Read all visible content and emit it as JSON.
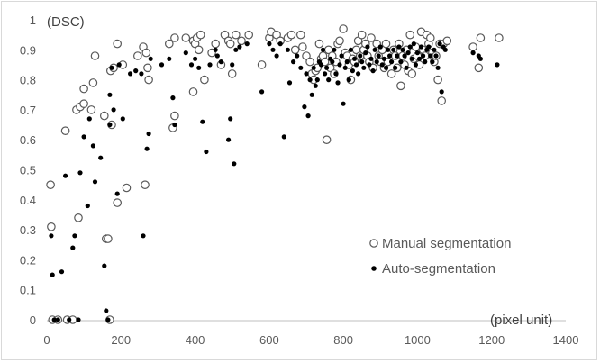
{
  "chart_data": {
    "type": "scatter",
    "ylabel": "(DSC)",
    "xlabel": "(pixel unit)",
    "xlim": [
      0,
      1400
    ],
    "ylim": [
      0,
      1
    ],
    "x_ticks": [
      "0",
      "200",
      "400",
      "600",
      "800",
      "1000",
      "1200",
      "1400"
    ],
    "y_ticks": [
      "0",
      "0.1",
      "0.2",
      "0.3",
      "0.4",
      "0.5",
      "0.6",
      "0.7",
      "0.8",
      "0.9",
      "1"
    ],
    "grid": false,
    "legend_position": "bottom-right",
    "series": [
      {
        "name": "Manual segmentation",
        "marker": "open-circle",
        "color": "#595959",
        "points": [
          [
            10,
            0.45
          ],
          [
            12,
            0.31
          ],
          [
            15,
            0
          ],
          [
            30,
            0
          ],
          [
            50,
            0.63
          ],
          [
            55,
            0
          ],
          [
            70,
            0
          ],
          [
            80,
            0.7
          ],
          [
            85,
            0.34
          ],
          [
            90,
            0.71
          ],
          [
            100,
            0.72
          ],
          [
            100,
            0.77
          ],
          [
            120,
            0.7
          ],
          [
            125,
            0.79
          ],
          [
            130,
            0.88
          ],
          [
            155,
            0.68
          ],
          [
            160,
            0.27
          ],
          [
            165,
            0.27
          ],
          [
            170,
            0
          ],
          [
            172,
            0.83
          ],
          [
            175,
            0.65
          ],
          [
            180,
            0.84
          ],
          [
            190,
            0.92
          ],
          [
            190,
            0.39
          ],
          [
            205,
            0.85
          ],
          [
            215,
            0.44
          ],
          [
            245,
            0.88
          ],
          [
            260,
            0.91
          ],
          [
            265,
            0.45
          ],
          [
            268,
            0.89
          ],
          [
            272,
            0.84
          ],
          [
            275,
            0.8
          ],
          [
            330,
            0.92
          ],
          [
            340,
            0.64
          ],
          [
            345,
            0.94
          ],
          [
            345,
            0.68
          ],
          [
            375,
            0.94
          ],
          [
            395,
            0.76
          ],
          [
            395,
            0.93
          ],
          [
            400,
            0.92
          ],
          [
            405,
            0.94
          ],
          [
            410,
            0.9
          ],
          [
            415,
            0.95
          ],
          [
            425,
            0.8
          ],
          [
            445,
            0.89
          ],
          [
            455,
            0.92
          ],
          [
            470,
            0.85
          ],
          [
            480,
            0.95
          ],
          [
            490,
            0.93
          ],
          [
            495,
            0.92
          ],
          [
            500,
            0.82
          ],
          [
            510,
            0.95
          ],
          [
            525,
            0.93
          ],
          [
            545,
            0.95
          ],
          [
            580,
            0.85
          ],
          [
            600,
            0.94
          ],
          [
            605,
            0.96
          ],
          [
            620,
            0.95
          ],
          [
            630,
            0.93
          ],
          [
            650,
            0.94
          ],
          [
            660,
            0.95
          ],
          [
            670,
            0.9
          ],
          [
            685,
            0.95
          ],
          [
            690,
            0.91
          ],
          [
            700,
            0.88
          ],
          [
            710,
            0.86
          ],
          [
            715,
            0.82
          ],
          [
            720,
            0.8
          ],
          [
            725,
            0.83
          ],
          [
            730,
            0.84
          ],
          [
            735,
            0.92
          ],
          [
            740,
            0.87
          ],
          [
            745,
            0.88
          ],
          [
            750,
            0.86
          ],
          [
            755,
            0.6
          ],
          [
            760,
            0.9
          ],
          [
            765,
            0.84
          ],
          [
            770,
            0.88
          ],
          [
            775,
            0.82
          ],
          [
            780,
            0.86
          ],
          [
            785,
            0.92
          ],
          [
            790,
            0.93
          ],
          [
            800,
            0.97
          ],
          [
            805,
            0.89
          ],
          [
            810,
            0.88
          ],
          [
            815,
            0.85
          ],
          [
            820,
            0.8
          ],
          [
            825,
            0.87
          ],
          [
            830,
            0.86
          ],
          [
            835,
            0.9
          ],
          [
            840,
            0.93
          ],
          [
            845,
            0.88
          ],
          [
            850,
            0.95
          ],
          [
            855,
            0.9
          ],
          [
            860,
            0.92
          ],
          [
            865,
            0.88
          ],
          [
            870,
            0.86
          ],
          [
            875,
            0.94
          ],
          [
            880,
            0.84
          ],
          [
            890,
            0.92
          ],
          [
            895,
            0.88
          ],
          [
            900,
            0.86
          ],
          [
            905,
            0.9
          ],
          [
            910,
            0.84
          ],
          [
            915,
            0.92
          ],
          [
            920,
            0.86
          ],
          [
            930,
            0.82
          ],
          [
            935,
            0.9
          ],
          [
            940,
            0.88
          ],
          [
            945,
            0.84
          ],
          [
            950,
            0.92
          ],
          [
            955,
            0.78
          ],
          [
            960,
            0.88
          ],
          [
            965,
            0.85
          ],
          [
            970,
            0.9
          ],
          [
            975,
            0.83
          ],
          [
            980,
            0.95
          ],
          [
            985,
            0.82
          ],
          [
            990,
            0.87
          ],
          [
            995,
            0.91
          ],
          [
            1000,
            0.88
          ],
          [
            1005,
            0.85
          ],
          [
            1010,
            0.96
          ],
          [
            1015,
            0.9
          ],
          [
            1020,
            0.88
          ],
          [
            1025,
            0.95
          ],
          [
            1030,
            0.92
          ],
          [
            1035,
            0.94
          ],
          [
            1040,
            0.89
          ],
          [
            1045,
            0.86
          ],
          [
            1050,
            0.88
          ],
          [
            1055,
            0.8
          ],
          [
            1060,
            0.92
          ],
          [
            1065,
            0.73
          ],
          [
            1070,
            0.92
          ],
          [
            1080,
            0.93
          ],
          [
            1150,
            0.91
          ],
          [
            1165,
            0.84
          ],
          [
            1170,
            0.94
          ],
          [
            1220,
            0.94
          ]
        ]
      },
      {
        "name": "Auto-segmentation",
        "marker": "filled-circle",
        "color": "#000000",
        "points": [
          [
            12,
            0.28
          ],
          [
            15,
            0.15
          ],
          [
            20,
            0
          ],
          [
            30,
            0
          ],
          [
            40,
            0.16
          ],
          [
            50,
            0.48
          ],
          [
            60,
            0
          ],
          [
            70,
            0.24
          ],
          [
            75,
            0.28
          ],
          [
            85,
            0
          ],
          [
            90,
            0.49
          ],
          [
            100,
            0.61
          ],
          [
            110,
            0.38
          ],
          [
            115,
            0.67
          ],
          [
            125,
            0.58
          ],
          [
            130,
            0.46
          ],
          [
            145,
            0.54
          ],
          [
            155,
            0.18
          ],
          [
            160,
            0.03
          ],
          [
            165,
            0
          ],
          [
            170,
            0.75
          ],
          [
            170,
            0.65
          ],
          [
            175,
            0.84
          ],
          [
            180,
            0.7
          ],
          [
            190,
            0.42
          ],
          [
            195,
            0.85
          ],
          [
            205,
            0.67
          ],
          [
            225,
            0.82
          ],
          [
            240,
            0.83
          ],
          [
            255,
            0.82
          ],
          [
            260,
            0.28
          ],
          [
            270,
            0.57
          ],
          [
            275,
            0.62
          ],
          [
            280,
            0.87
          ],
          [
            310,
            0.85
          ],
          [
            330,
            0.87
          ],
          [
            340,
            0.74
          ],
          [
            345,
            0.65
          ],
          [
            375,
            0.89
          ],
          [
            390,
            0.85
          ],
          [
            400,
            0.87
          ],
          [
            410,
            0.84
          ],
          [
            420,
            0.66
          ],
          [
            430,
            0.56
          ],
          [
            440,
            0.85
          ],
          [
            455,
            0.9
          ],
          [
            460,
            0.88
          ],
          [
            470,
            0.86
          ],
          [
            490,
            0.6
          ],
          [
            495,
            0.67
          ],
          [
            500,
            0.85
          ],
          [
            505,
            0.52
          ],
          [
            510,
            0.9
          ],
          [
            520,
            0.91
          ],
          [
            540,
            0.92
          ],
          [
            580,
            0.76
          ],
          [
            600,
            0.92
          ],
          [
            610,
            0.9
          ],
          [
            620,
            0.88
          ],
          [
            630,
            0.92
          ],
          [
            640,
            0.61
          ],
          [
            650,
            0.9
          ],
          [
            655,
            0.79
          ],
          [
            665,
            0.86
          ],
          [
            675,
            0.88
          ],
          [
            685,
            0.84
          ],
          [
            695,
            0.71
          ],
          [
            700,
            0.82
          ],
          [
            705,
            0.68
          ],
          [
            710,
            0.8
          ],
          [
            715,
            0.75
          ],
          [
            720,
            0.84
          ],
          [
            725,
            0.78
          ],
          [
            730,
            0.8
          ],
          [
            735,
            0.86
          ],
          [
            740,
            0.85
          ],
          [
            745,
            0.9
          ],
          [
            750,
            0.82
          ],
          [
            755,
            0.84
          ],
          [
            760,
            0.8
          ],
          [
            765,
            0.87
          ],
          [
            770,
            0.86
          ],
          [
            775,
            0.9
          ],
          [
            780,
            0.82
          ],
          [
            785,
            0.79
          ],
          [
            790,
            0.85
          ],
          [
            795,
            0.88
          ],
          [
            800,
            0.72
          ],
          [
            805,
            0.84
          ],
          [
            810,
            0.86
          ],
          [
            815,
            0.8
          ],
          [
            820,
            0.9
          ],
          [
            825,
            0.83
          ],
          [
            830,
            0.87
          ],
          [
            835,
            0.85
          ],
          [
            840,
            0.82
          ],
          [
            845,
            0.88
          ],
          [
            850,
            0.86
          ],
          [
            855,
            0.84
          ],
          [
            860,
            0.89
          ],
          [
            865,
            0.91
          ],
          [
            870,
            0.85
          ],
          [
            875,
            0.87
          ],
          [
            880,
            0.83
          ],
          [
            885,
            0.9
          ],
          [
            890,
            0.86
          ],
          [
            895,
            0.88
          ],
          [
            900,
            0.91
          ],
          [
            905,
            0.85
          ],
          [
            910,
            0.87
          ],
          [
            915,
            0.84
          ],
          [
            920,
            0.9
          ],
          [
            925,
            0.88
          ],
          [
            930,
            0.86
          ],
          [
            935,
            0.9
          ],
          [
            940,
            0.84
          ],
          [
            945,
            0.88
          ],
          [
            950,
            0.91
          ],
          [
            955,
            0.86
          ],
          [
            960,
            0.9
          ],
          [
            965,
            0.88
          ],
          [
            970,
            0.84
          ],
          [
            975,
            0.89
          ],
          [
            980,
            0.91
          ],
          [
            985,
            0.87
          ],
          [
            990,
            0.92
          ],
          [
            995,
            0.85
          ],
          [
            1000,
            0.89
          ],
          [
            1005,
            0.87
          ],
          [
            1010,
            0.91
          ],
          [
            1015,
            0.88
          ],
          [
            1020,
            0.86
          ],
          [
            1025,
            0.9
          ],
          [
            1030,
            0.91
          ],
          [
            1035,
            0.88
          ],
          [
            1040,
            0.86
          ],
          [
            1045,
            0.9
          ],
          [
            1050,
            0.88
          ],
          [
            1055,
            0.84
          ],
          [
            1060,
            0.92
          ],
          [
            1065,
            0.76
          ],
          [
            1070,
            0.91
          ],
          [
            1075,
            0.9
          ],
          [
            1150,
            0.89
          ],
          [
            1165,
            0.88
          ],
          [
            1170,
            0.87
          ],
          [
            1215,
            0.85
          ]
        ]
      }
    ]
  }
}
